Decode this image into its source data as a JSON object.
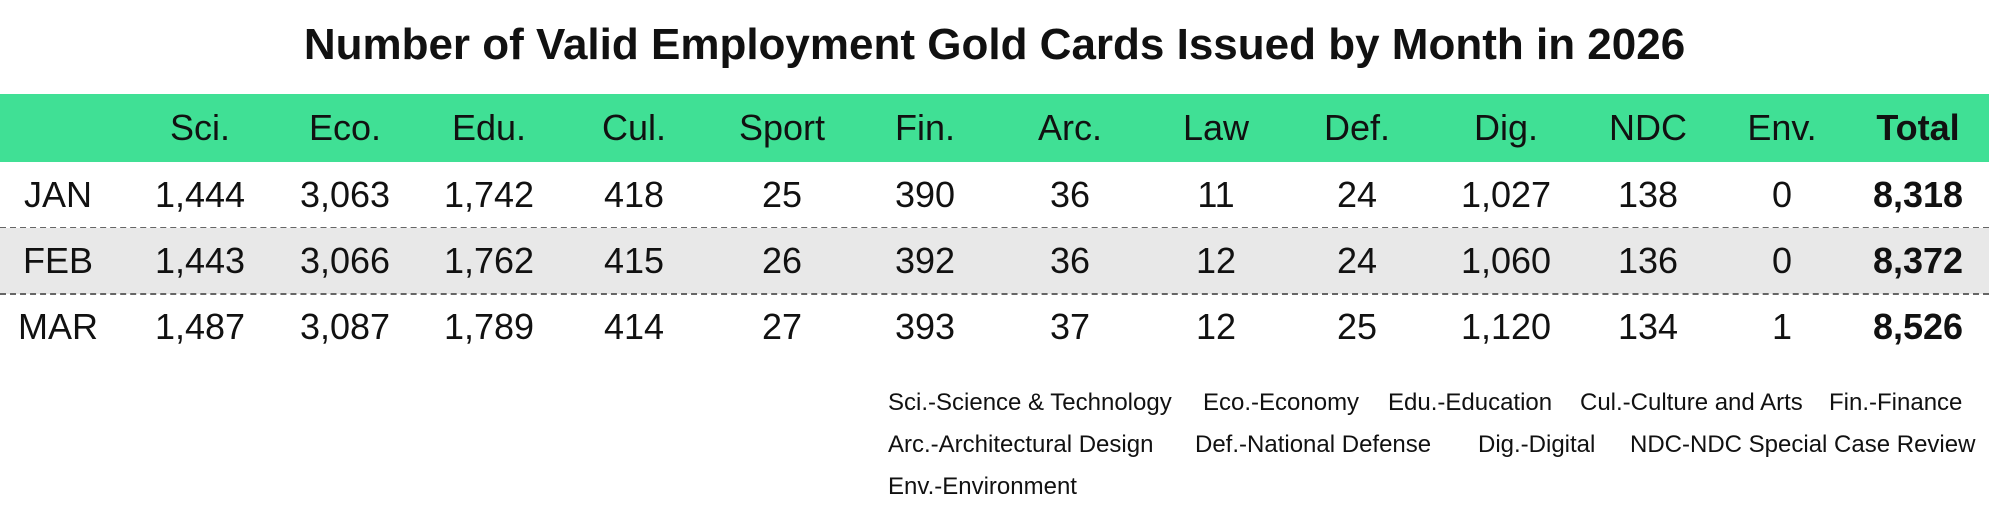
{
  "title": "Number of Valid Employment Gold Cards Issued by Month in 2026",
  "colors": {
    "header_bg": "#40e095",
    "alt_row_bg": "#e8e8e8",
    "text": "#111111",
    "divider": "#666666"
  },
  "chart_data": {
    "type": "table",
    "title": "Number of Valid Employment Gold Cards Issued by Month in 2026",
    "columns": [
      "Sci.",
      "Eco.",
      "Edu.",
      "Cul.",
      "Sport",
      "Fin.",
      "Arc.",
      "Law",
      "Def.",
      "Dig.",
      "NDC",
      "Env.",
      "Total"
    ],
    "rows": [
      {
        "label": "JAN",
        "values": [
          "1,444",
          "3,063",
          "1,742",
          "418",
          "25",
          "390",
          "36",
          "11",
          "24",
          "1,027",
          "138",
          "0",
          "8,318"
        ]
      },
      {
        "label": "FEB",
        "values": [
          "1,443",
          "3,066",
          "1,762",
          "415",
          "26",
          "392",
          "36",
          "12",
          "24",
          "1,060",
          "136",
          "0",
          "8,372"
        ]
      },
      {
        "label": "MAR",
        "values": [
          "1,487",
          "3,087",
          "1,789",
          "414",
          "27",
          "393",
          "37",
          "12",
          "25",
          "1,120",
          "134",
          "1",
          "8,526"
        ]
      }
    ]
  },
  "legend": [
    [
      "Sci.-Science & Technology",
      "Eco.-Economy",
      "Edu.-Education",
      "Cul.-Culture and Arts",
      "Fin.-Finance"
    ],
    [
      "Arc.-Architectural Design",
      "Def.-National Defense",
      "Dig.-Digital",
      "NDC-NDC Special Case Review"
    ],
    [
      "Env.-Environment"
    ]
  ]
}
